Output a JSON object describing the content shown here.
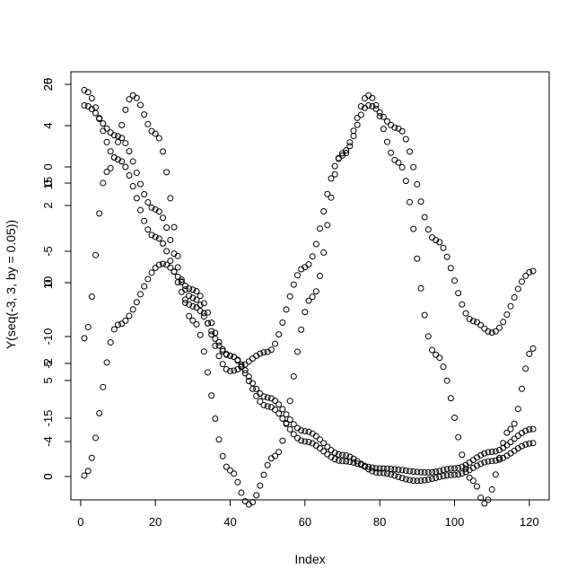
{
  "chart_data": {
    "type": "scatter",
    "title": "",
    "xlabel": "Index",
    "ylabel": "Y(seq(-3, 3, by = 0.05))",
    "xlim": [
      1,
      121
    ],
    "x_ticks": [
      0,
      20,
      40,
      60,
      80,
      100,
      120
    ],
    "grid": false,
    "legend": "none",
    "marker": "open-circle",
    "overlaid_y_axes": [
      {
        "id": "axis_a",
        "range": [
          -17.7,
          20.7
        ],
        "ticks": [
          -15,
          -10,
          -5,
          0,
          5,
          10,
          15,
          20
        ]
      },
      {
        "id": "axis_b",
        "range": [
          -4.8,
          5.5
        ],
        "ticks": [
          -4,
          -2,
          2,
          4
        ]
      },
      {
        "id": "axis_c",
        "range": [
          0.0,
          20.0
        ],
        "ticks": [
          0,
          5,
          10,
          15,
          20
        ]
      }
    ],
    "x": "1..121 (Index of seq(-3, 3, by = 0.05))",
    "series": [
      {
        "id": "s1",
        "axis": "axis_c",
        "formula": "t^2 + 2 - 9*cos(t*pi/3)^2 ... decreasing convex, 20 at start to ~0.3 near index 90, rising to ~2 at 121",
        "samples": [
          [
            1,
            19.8
          ],
          [
            10,
            16.3
          ],
          [
            20,
            12.4
          ],
          [
            30,
            8.9
          ],
          [
            40,
            6.4
          ],
          [
            50,
            4.3
          ],
          [
            60,
            2.6
          ],
          [
            70,
            1.4
          ],
          [
            80,
            0.5
          ],
          [
            90,
            0.1
          ],
          [
            100,
            0.4
          ],
          [
            110,
            1.1
          ],
          [
            121,
            2.0
          ]
        ]
      },
      {
        "id": "s2",
        "axis": "axis_b",
        "formula": "oscillating, trough at index ~42, peak ~77, trough ~110",
        "samples": [
          [
            1,
            5.0
          ],
          [
            10,
            4.2
          ],
          [
            20,
            2.3
          ],
          [
            30,
            0.0
          ],
          [
            40,
            -1.9
          ],
          [
            50,
            -1.4
          ],
          [
            60,
            0.8
          ],
          [
            70,
            3.7
          ],
          [
            77,
            5.0
          ],
          [
            85,
            4.4
          ],
          [
            95,
            1.5
          ],
          [
            105,
            -0.6
          ],
          [
            110,
            -0.9
          ],
          [
            121,
            0.7
          ]
        ]
      },
      {
        "id": "s3",
        "axis": "axis_a",
        "formula": "sinusoid, peaks near index 14 and 77, troughs near 45 and 108",
        "samples": [
          [
            1,
            -3.7
          ],
          [
            7,
            12.4
          ],
          [
            14,
            19.8
          ],
          [
            20,
            16.1
          ],
          [
            30,
            -2.0
          ],
          [
            40,
            -16.5
          ],
          [
            45,
            -19.8
          ],
          [
            52,
            -15.1
          ],
          [
            62,
            0.3
          ],
          [
            70,
            14.2
          ],
          [
            77,
            19.8
          ],
          [
            85,
            13.3
          ],
          [
            95,
            -5.3
          ],
          [
            105,
            -17.5
          ],
          [
            108,
            -19.7
          ],
          [
            115,
            -12.5
          ],
          [
            121,
            -4.7
          ]
        ]
      },
      {
        "id": "s4",
        "axis": "axis_a",
        "formula": "parabola-like, low at start, peak near index 22, minimum near 93, rising",
        "samples": [
          [
            1,
            -17.0
          ],
          [
            10,
            -2.4
          ],
          [
            22,
            3.5
          ],
          [
            30,
            1.0
          ],
          [
            40,
            -5.4
          ],
          [
            50,
            -10.3
          ],
          [
            60,
            -13.7
          ],
          [
            70,
            -15.6
          ],
          [
            80,
            -16.3
          ],
          [
            93,
            -16.7
          ],
          [
            100,
            -16.3
          ],
          [
            110,
            -14.7
          ],
          [
            121,
            -12.5
          ]
        ]
      }
    ]
  },
  "axes_text": {
    "x_tick_labels": [
      "0",
      "20",
      "40",
      "60",
      "80",
      "100",
      "120"
    ],
    "y_tick_labels": [
      {
        "text": "20"
      },
      {
        "text": "25"
      },
      {
        "text": "4"
      },
      {
        "text": "0"
      },
      {
        "text": "15"
      },
      {
        "text": "0"
      },
      {
        "text": "2"
      },
      {
        "text": "-5"
      },
      {
        "text": "10"
      },
      {
        "text": "0"
      },
      {
        "text": "-10"
      },
      {
        "text": "5"
      },
      {
        "text": "-2"
      },
      {
        "text": "5"
      },
      {
        "text": "-15"
      },
      {
        "text": "-4"
      },
      {
        "text": "0"
      },
      {
        "text": "0"
      }
    ]
  }
}
